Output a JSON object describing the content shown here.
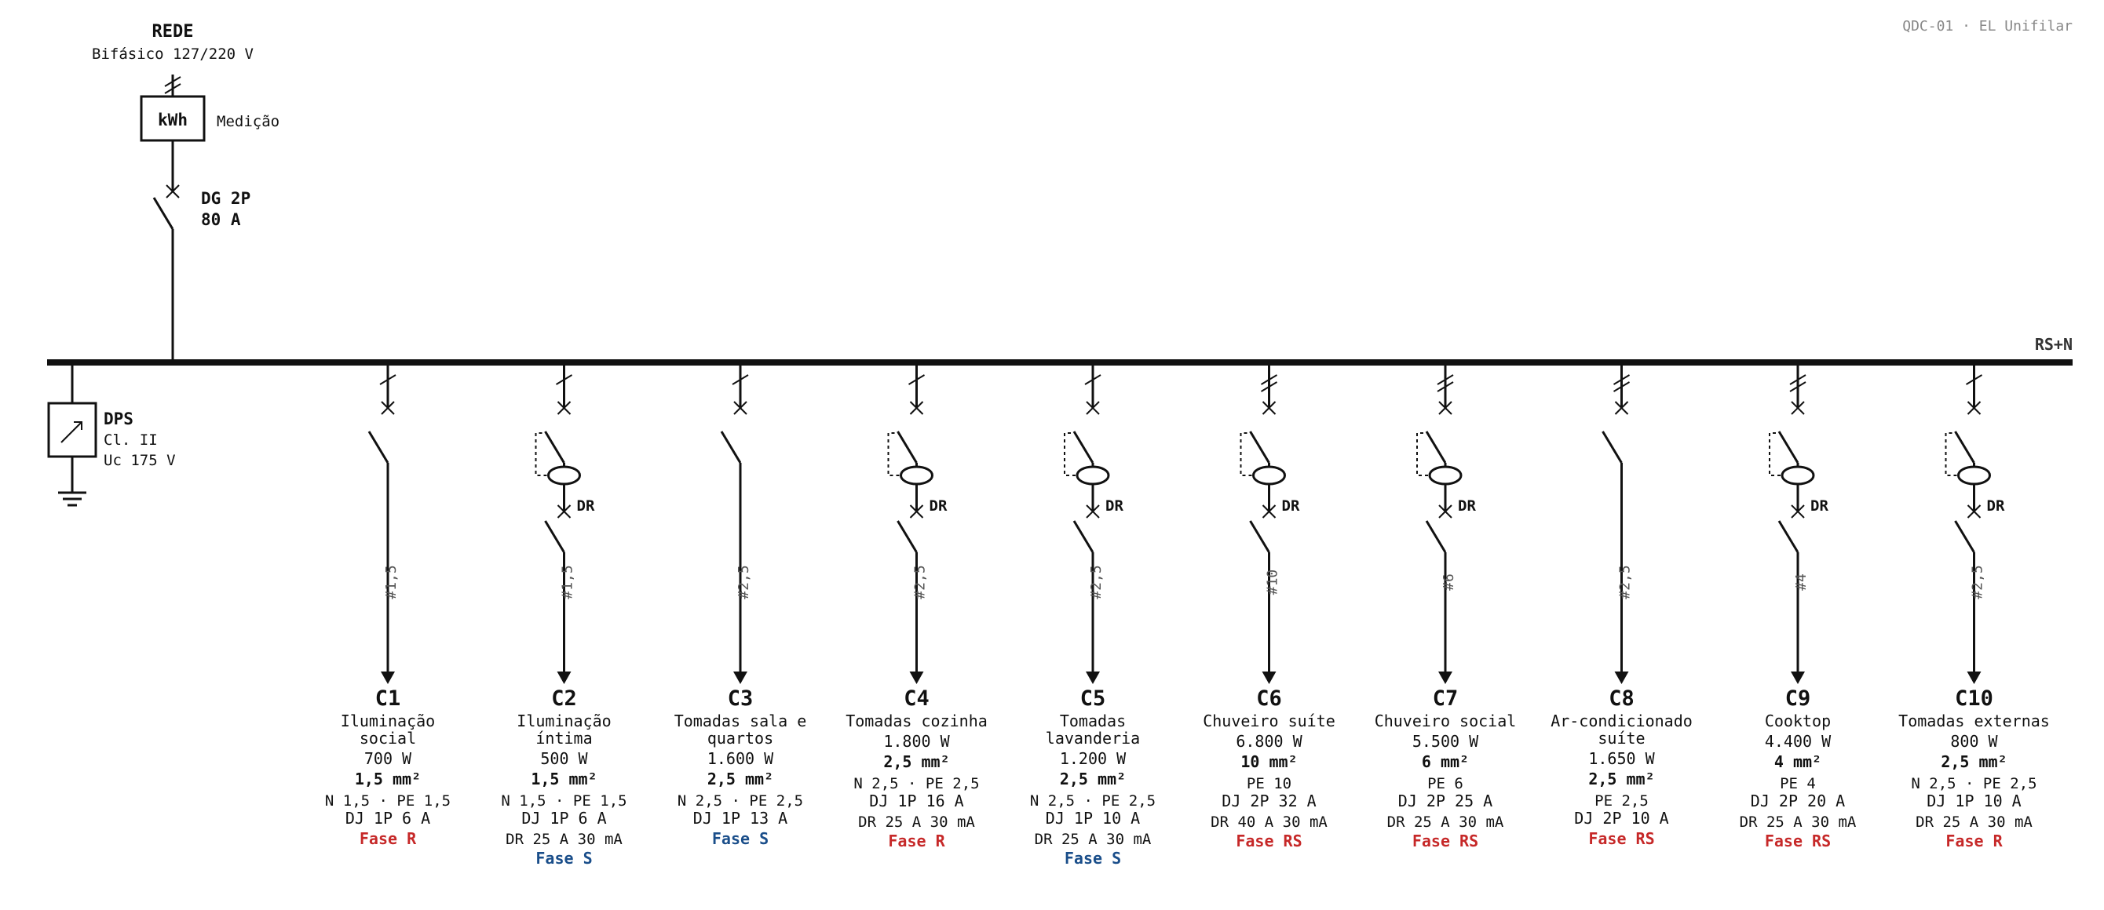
{
  "header": {
    "sheet_tag": "QDC-01 · EL Unifilar"
  },
  "supply": {
    "title": "REDE",
    "subtitle": "Bifásico 127/220 V",
    "meter_label": "kWh",
    "meter_caption": "Medição",
    "main_breaker_line1": "DG 2P",
    "main_breaker_line2": "80 A"
  },
  "bus": {
    "label": "RS+N"
  },
  "surge_protector": {
    "line1": "DPS",
    "line2": "Cl. II",
    "line3": "Uc 175 V"
  },
  "colors": {
    "phase_r": "#c62828",
    "phase_s": "#1a4e8a",
    "phase_rs": "#c62828",
    "ink": "#111111"
  },
  "circuits": [
    {
      "id": "C1",
      "desc": [
        "Iluminação",
        "social"
      ],
      "power": "700 W",
      "section": "1,5 mm²",
      "conductors": "N 1,5 · PE 1,5",
      "breaker": "DJ 1P 6 A",
      "dr": "",
      "phase": "Fase R",
      "phase_color": "#c62828",
      "gauge": "#1,5",
      "poles": 1,
      "has_dr": false
    },
    {
      "id": "C2",
      "desc": [
        "Iluminação",
        "íntima"
      ],
      "power": "500 W",
      "section": "1,5 mm²",
      "conductors": "N 1,5 · PE 1,5",
      "breaker": "DJ 1P 6 A",
      "dr": "DR 25 A 30 mA",
      "phase": "Fase S",
      "phase_color": "#1a4e8a",
      "gauge": "#1,5",
      "poles": 1,
      "has_dr": true
    },
    {
      "id": "C3",
      "desc": [
        "Tomadas sala e",
        "quartos"
      ],
      "power": "1.600 W",
      "section": "2,5 mm²",
      "conductors": "N 2,5 · PE 2,5",
      "breaker": "DJ 1P 13 A",
      "dr": "",
      "phase": "Fase S",
      "phase_color": "#1a4e8a",
      "gauge": "#2,5",
      "poles": 1,
      "has_dr": false
    },
    {
      "id": "C4",
      "desc": [
        "Tomadas cozinha"
      ],
      "power": "1.800 W",
      "section": "2,5 mm²",
      "conductors": "N 2,5 · PE 2,5",
      "breaker": "DJ 1P 16 A",
      "dr": "DR 25 A 30 mA",
      "phase": "Fase R",
      "phase_color": "#c62828",
      "gauge": "#2,5",
      "poles": 1,
      "has_dr": true
    },
    {
      "id": "C5",
      "desc": [
        "Tomadas",
        "lavanderia"
      ],
      "power": "1.200 W",
      "section": "2,5 mm²",
      "conductors": "N 2,5 · PE 2,5",
      "breaker": "DJ 1P 10 A",
      "dr": "DR 25 A 30 mA",
      "phase": "Fase S",
      "phase_color": "#1a4e8a",
      "gauge": "#2,5",
      "poles": 1,
      "has_dr": true
    },
    {
      "id": "C6",
      "desc": [
        "Chuveiro suíte"
      ],
      "power": "6.800 W",
      "section": "10 mm²",
      "conductors": "PE 10",
      "breaker": "DJ 2P 32 A",
      "dr": "DR 40 A 30 mA",
      "phase": "Fase RS",
      "phase_color": "#c62828",
      "gauge": "#10",
      "poles": 2,
      "has_dr": true
    },
    {
      "id": "C7",
      "desc": [
        "Chuveiro social"
      ],
      "power": "5.500 W",
      "section": "6 mm²",
      "conductors": "PE 6",
      "breaker": "DJ 2P 25 A",
      "dr": "DR 25 A 30 mA",
      "phase": "Fase RS",
      "phase_color": "#c62828",
      "gauge": "#6",
      "poles": 2,
      "has_dr": true
    },
    {
      "id": "C8",
      "desc": [
        "Ar-condicionado",
        "suíte"
      ],
      "power": "1.650 W",
      "section": "2,5 mm²",
      "conductors": "PE 2,5",
      "breaker": "DJ 2P 10 A",
      "dr": "",
      "phase": "Fase RS",
      "phase_color": "#c62828",
      "gauge": "#2,5",
      "poles": 2,
      "has_dr": false
    },
    {
      "id": "C9",
      "desc": [
        "Cooktop"
      ],
      "power": "4.400 W",
      "section": "4 mm²",
      "conductors": "PE 4",
      "breaker": "DJ 2P 20 A",
      "dr": "DR 25 A 30 mA",
      "phase": "Fase RS",
      "phase_color": "#c62828",
      "gauge": "#4",
      "poles": 2,
      "has_dr": true
    },
    {
      "id": "C10",
      "desc": [
        "Tomadas externas"
      ],
      "power": "800 W",
      "section": "2,5 mm²",
      "conductors": "N 2,5 · PE 2,5",
      "breaker": "DJ 1P 10 A",
      "dr": "DR 25 A 30 mA",
      "phase": "Fase R",
      "phase_color": "#c62828",
      "gauge": "#2,5",
      "poles": 1,
      "has_dr": true
    }
  ],
  "dr_label": "DR"
}
